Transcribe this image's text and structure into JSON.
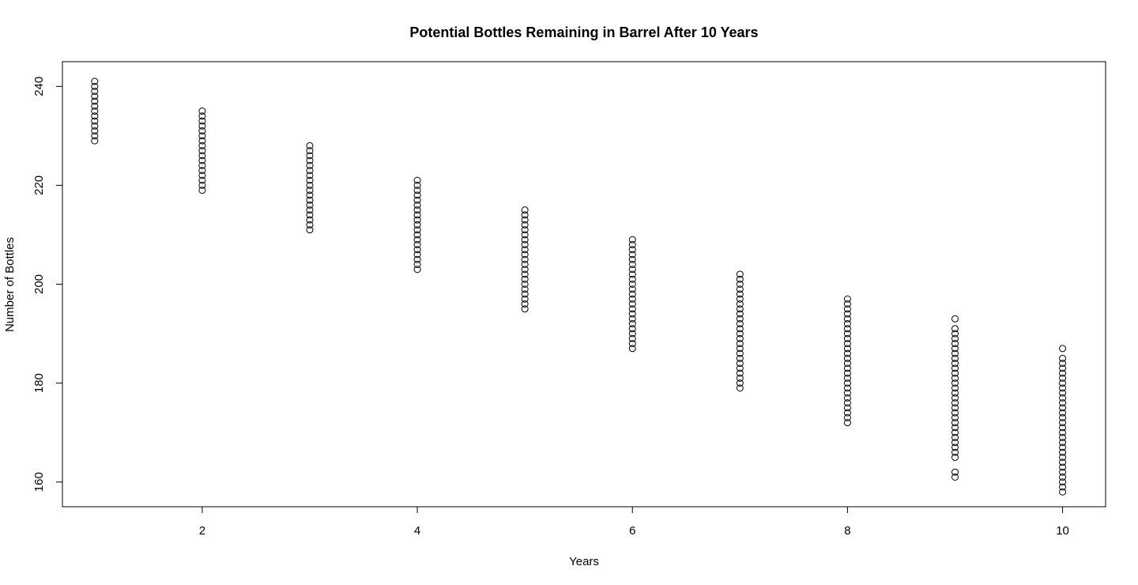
{
  "chart_data": {
    "type": "scatter",
    "title": "Potential Bottles Remaining in Barrel After 10 Years",
    "xlabel": "Years",
    "ylabel": "Number of Bottles",
    "xlim": [
      0.7,
      10.4
    ],
    "ylim": [
      155,
      245
    ],
    "x_ticks": [
      2,
      4,
      6,
      8,
      10
    ],
    "y_ticks": [
      160,
      180,
      200,
      220,
      240
    ],
    "grid": false,
    "legend": "none",
    "colors": {
      "point_stroke": "#000000",
      "axis": "#000000",
      "background": "#ffffff"
    },
    "series": [
      {
        "points_by_x": [
          {
            "x": 1,
            "y": [
              229,
              230,
              231,
              232,
              233,
              234,
              235,
              236,
              237,
              238,
              239,
              240,
              241
            ]
          },
          {
            "x": 2,
            "y": [
              219,
              220,
              221,
              222,
              223,
              224,
              225,
              226,
              227,
              228,
              229,
              230,
              231,
              232,
              233,
              234,
              235
            ]
          },
          {
            "x": 3,
            "y": [
              211,
              212,
              213,
              214,
              215,
              216,
              217,
              218,
              219,
              220,
              221,
              222,
              223,
              224,
              225,
              226,
              227,
              228
            ]
          },
          {
            "x": 4,
            "y": [
              203,
              204,
              205,
              206,
              207,
              208,
              209,
              210,
              211,
              212,
              213,
              214,
              215,
              216,
              217,
              218,
              219,
              220,
              221
            ]
          },
          {
            "x": 5,
            "y": [
              195,
              196,
              197,
              198,
              199,
              200,
              201,
              202,
              203,
              204,
              205,
              206,
              207,
              208,
              209,
              210,
              211,
              212,
              213,
              214,
              215
            ]
          },
          {
            "x": 6,
            "y": [
              187,
              188,
              189,
              190,
              191,
              192,
              193,
              194,
              195,
              196,
              197,
              198,
              199,
              200,
              201,
              202,
              203,
              204,
              205,
              206,
              207,
              208,
              209
            ]
          },
          {
            "x": 7,
            "y": [
              179,
              180,
              181,
              182,
              183,
              184,
              185,
              186,
              187,
              188,
              189,
              190,
              191,
              192,
              193,
              194,
              195,
              196,
              197,
              198,
              199,
              200,
              201,
              202
            ]
          },
          {
            "x": 8,
            "y": [
              172,
              173,
              174,
              175,
              176,
              177,
              178,
              179,
              180,
              181,
              182,
              183,
              184,
              185,
              186,
              187,
              188,
              189,
              190,
              191,
              192,
              193,
              194,
              195,
              196,
              197
            ]
          },
          {
            "x": 9,
            "y": [
              161,
              162,
              165,
              166,
              167,
              168,
              169,
              170,
              171,
              172,
              173,
              174,
              175,
              176,
              177,
              178,
              179,
              180,
              181,
              182,
              183,
              184,
              185,
              186,
              187,
              188,
              189,
              190,
              191,
              193
            ]
          },
          {
            "x": 10,
            "y": [
              158,
              159,
              160,
              161,
              162,
              163,
              164,
              165,
              166,
              167,
              168,
              169,
              170,
              171,
              172,
              173,
              174,
              175,
              176,
              177,
              178,
              179,
              180,
              181,
              182,
              183,
              184,
              185,
              187
            ]
          }
        ]
      }
    ]
  }
}
